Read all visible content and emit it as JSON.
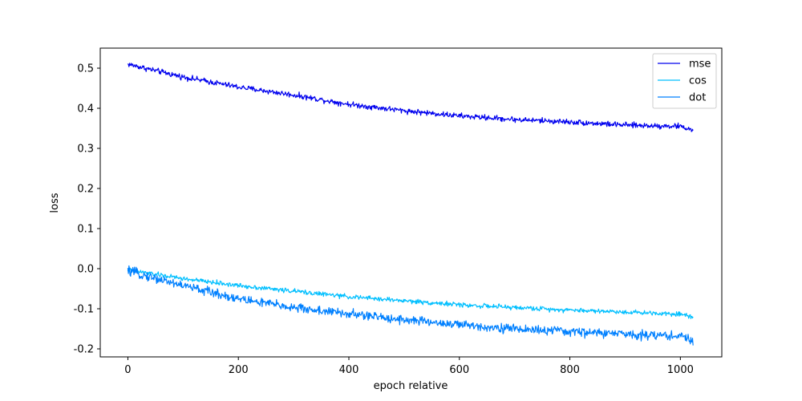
{
  "chart_data": {
    "type": "line",
    "title": "",
    "xlabel": "epoch relative",
    "ylabel": "loss",
    "xlim": [
      -50,
      1075
    ],
    "ylim": [
      -0.22,
      0.55
    ],
    "x_ticks": [
      0,
      200,
      400,
      600,
      800,
      1000
    ],
    "y_ticks": [
      -0.2,
      -0.1,
      0.0,
      0.1,
      0.2,
      0.3,
      0.4,
      0.5
    ],
    "legend": {
      "placement": "top-right"
    },
    "grid": false,
    "x_points": 1024,
    "series": [
      {
        "name": "mse",
        "color": "#0000ee",
        "trend": [
          [
            0,
            0.51
          ],
          [
            100,
            0.478
          ],
          [
            200,
            0.453
          ],
          [
            300,
            0.433
          ],
          [
            400,
            0.41
          ],
          [
            500,
            0.394
          ],
          [
            600,
            0.381
          ],
          [
            700,
            0.372
          ],
          [
            800,
            0.366
          ],
          [
            900,
            0.358
          ],
          [
            1000,
            0.355
          ],
          [
            1023,
            0.345
          ]
        ],
        "noise": 0.006
      },
      {
        "name": "cos",
        "color": "#00bfff",
        "trend": [
          [
            0,
            -0.003
          ],
          [
            100,
            -0.025
          ],
          [
            200,
            -0.042
          ],
          [
            300,
            -0.056
          ],
          [
            400,
            -0.07
          ],
          [
            500,
            -0.08
          ],
          [
            600,
            -0.09
          ],
          [
            700,
            -0.097
          ],
          [
            800,
            -0.103
          ],
          [
            900,
            -0.108
          ],
          [
            1000,
            -0.113
          ],
          [
            1023,
            -0.12
          ]
        ],
        "noise": 0.005
      },
      {
        "name": "dot",
        "color": "#0080ff",
        "trend": [
          [
            0,
            -0.006
          ],
          [
            100,
            -0.042
          ],
          [
            200,
            -0.075
          ],
          [
            300,
            -0.097
          ],
          [
            400,
            -0.113
          ],
          [
            500,
            -0.127
          ],
          [
            600,
            -0.14
          ],
          [
            700,
            -0.15
          ],
          [
            800,
            -0.157
          ],
          [
            900,
            -0.163
          ],
          [
            1000,
            -0.168
          ],
          [
            1023,
            -0.18
          ]
        ],
        "noise": 0.01
      }
    ]
  }
}
